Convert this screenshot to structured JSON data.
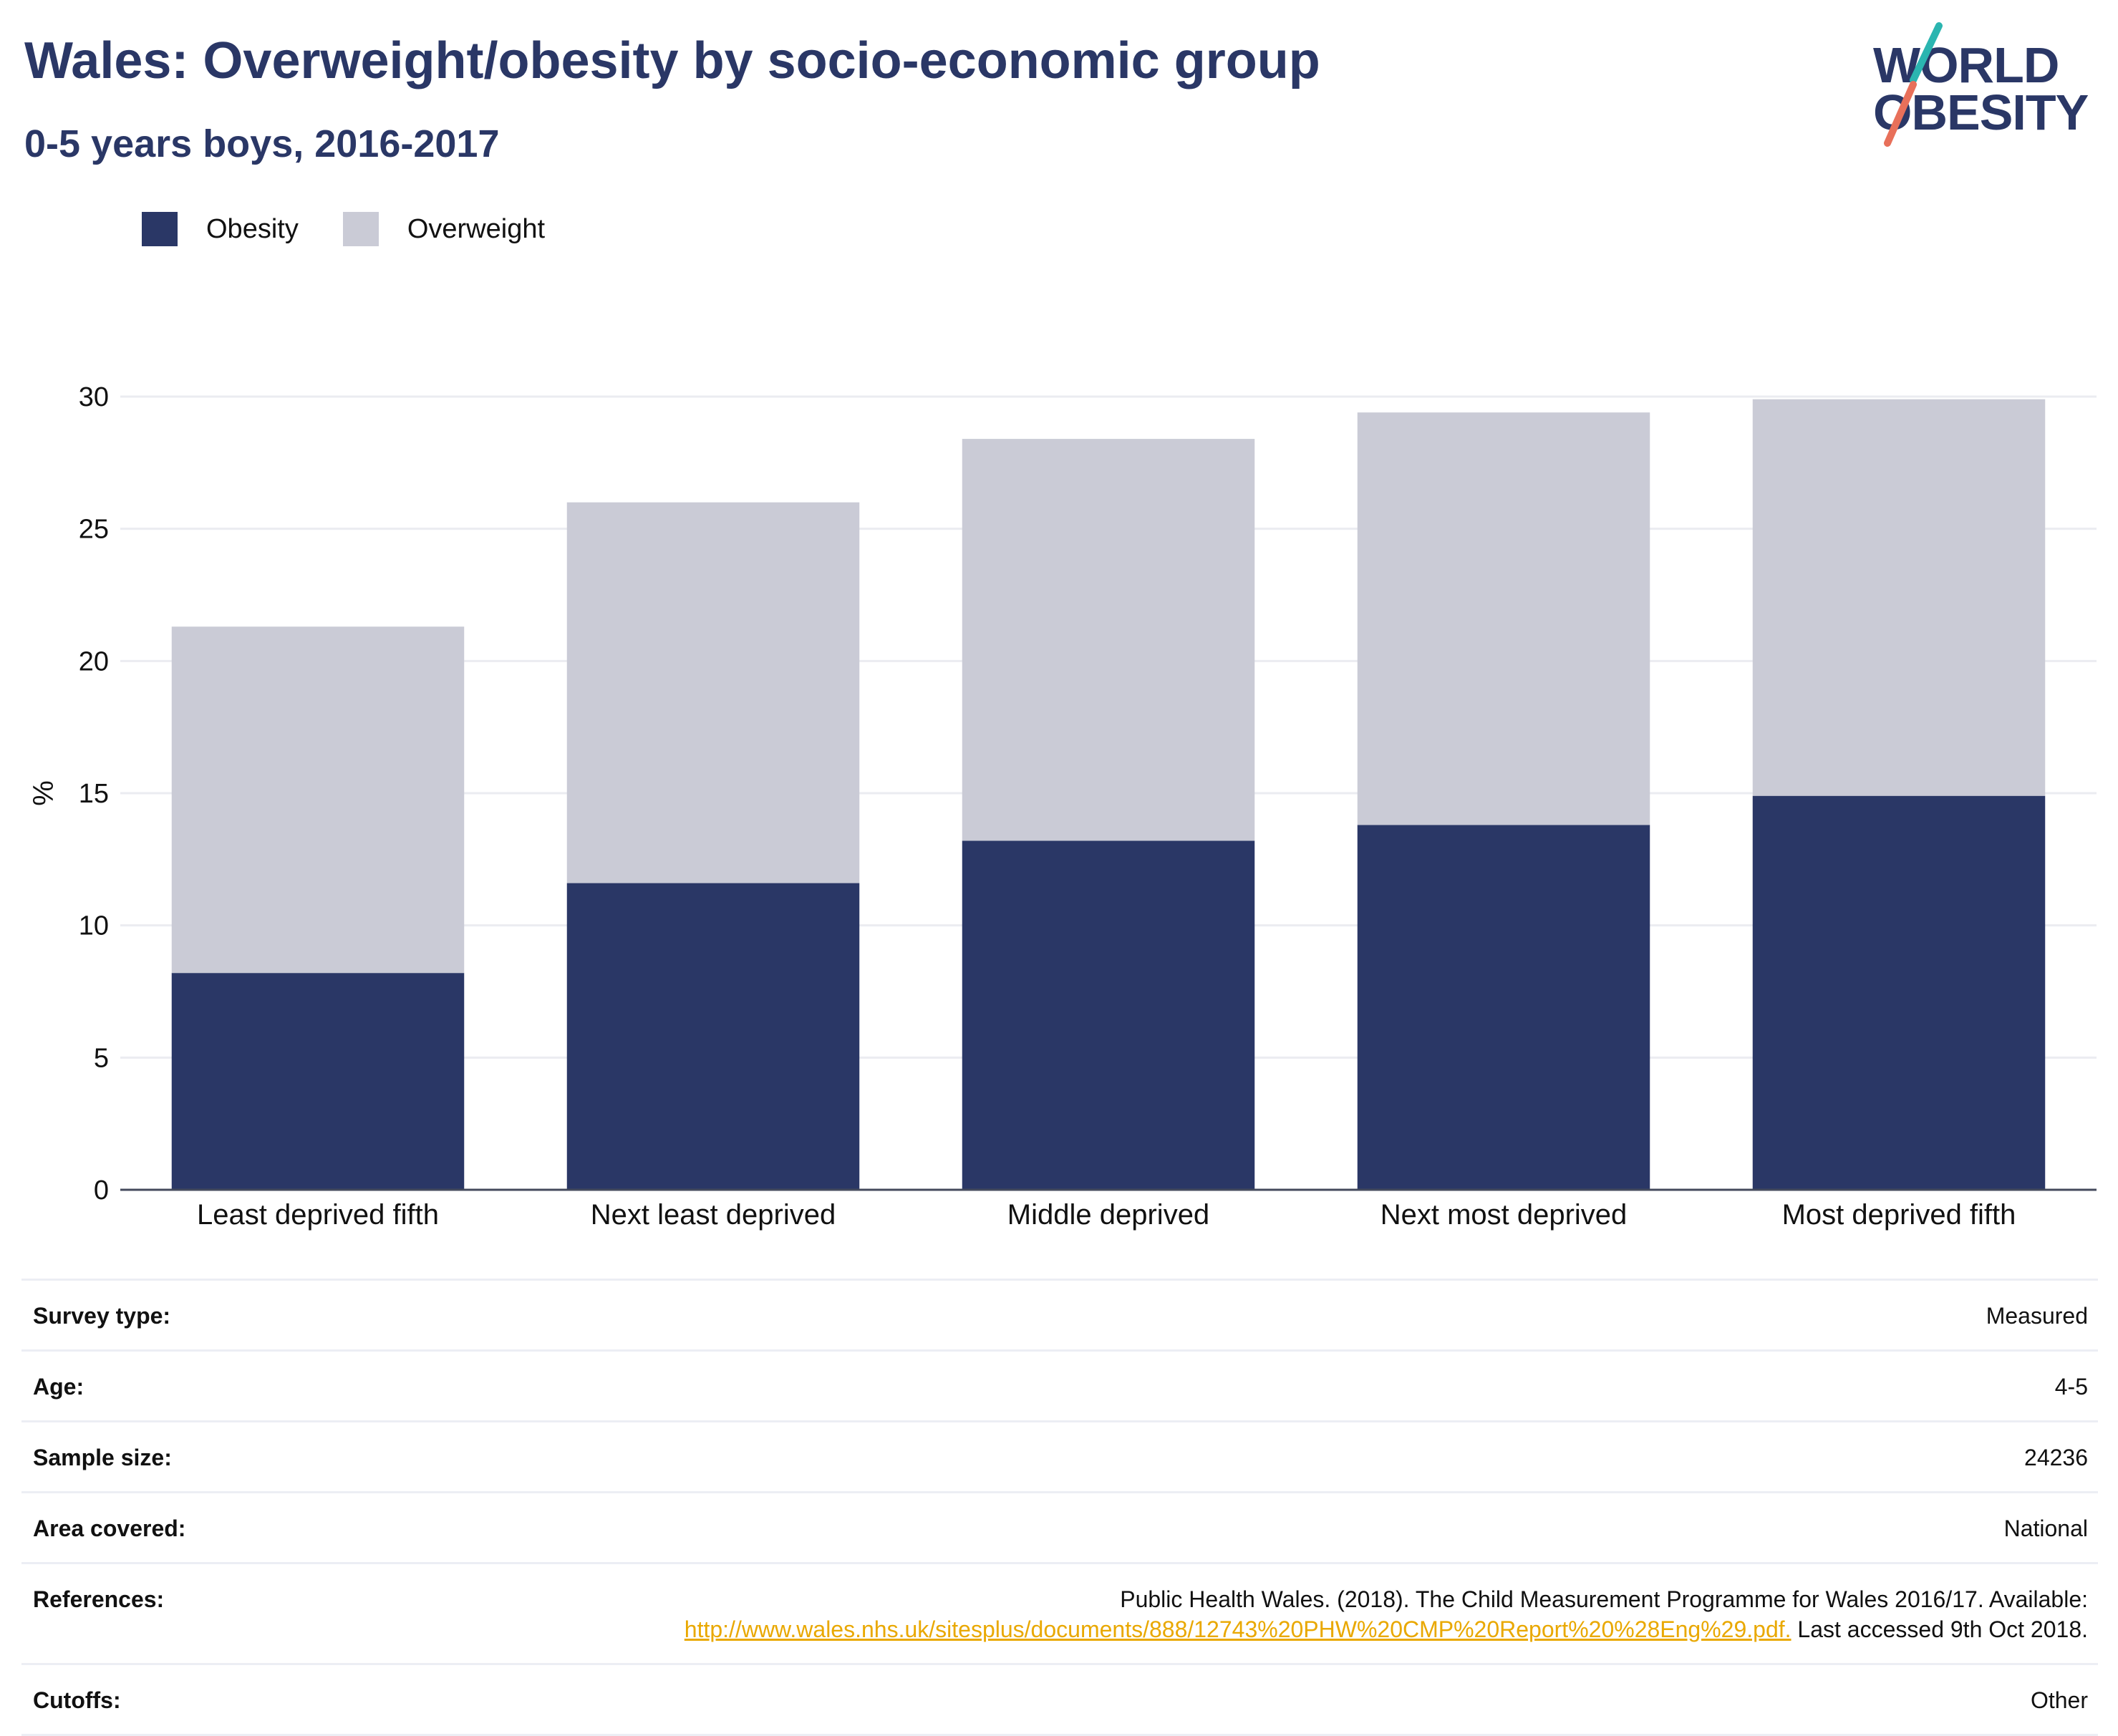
{
  "header": {
    "title": "Wales: Overweight/obesity by socio-economic group",
    "subtitle": "0-5 years boys, 2016-2017"
  },
  "logo": {
    "line1": "WORLD",
    "line2": "OBESITY",
    "colors": {
      "text": "#2a3766",
      "slash_top": "#2bb5b0",
      "slash_bottom": "#e8705a"
    }
  },
  "legend": {
    "items": [
      {
        "label": "Obesity",
        "color": "#2a3766"
      },
      {
        "label": "Overweight",
        "color": "#cacbd6"
      }
    ]
  },
  "chart_data": {
    "type": "bar",
    "stacked": true,
    "categories": [
      "Least deprived fifth",
      "Next least deprived",
      "Middle deprived",
      "Next most deprived",
      "Most deprived fifth"
    ],
    "series": [
      {
        "name": "Obesity",
        "color": "#2a3766",
        "values": [
          8.2,
          11.6,
          13.2,
          13.8,
          14.9
        ]
      },
      {
        "name": "Overweight",
        "color": "#cacbd6",
        "values": [
          13.1,
          14.4,
          15.2,
          15.6,
          15.0
        ]
      }
    ],
    "xlabel": "",
    "ylabel": "%",
    "ylim": [
      0,
      30
    ],
    "yticks": [
      0,
      5,
      10,
      15,
      20,
      25,
      30
    ],
    "grid": true,
    "legend_position": "top-left"
  },
  "info": {
    "rows": [
      {
        "label": "Survey type:",
        "value": "Measured"
      },
      {
        "label": "Age:",
        "value": "4-5"
      },
      {
        "label": "Sample size:",
        "value": "24236"
      },
      {
        "label": "Area covered:",
        "value": "National"
      },
      {
        "label": "References:",
        "value_pre": "Public Health Wales. (2018). The Child Measurement Programme for Wales 2016/17. Available:",
        "link": "http://www.wales.nhs.uk/sitesplus/documents/888/12743%20PHW%20CMP%20Report%20%28Eng%29.pdf.",
        "value_post": " Last accessed 9th Oct 2018."
      },
      {
        "label": "Cutoffs:",
        "value": "Other"
      }
    ]
  }
}
